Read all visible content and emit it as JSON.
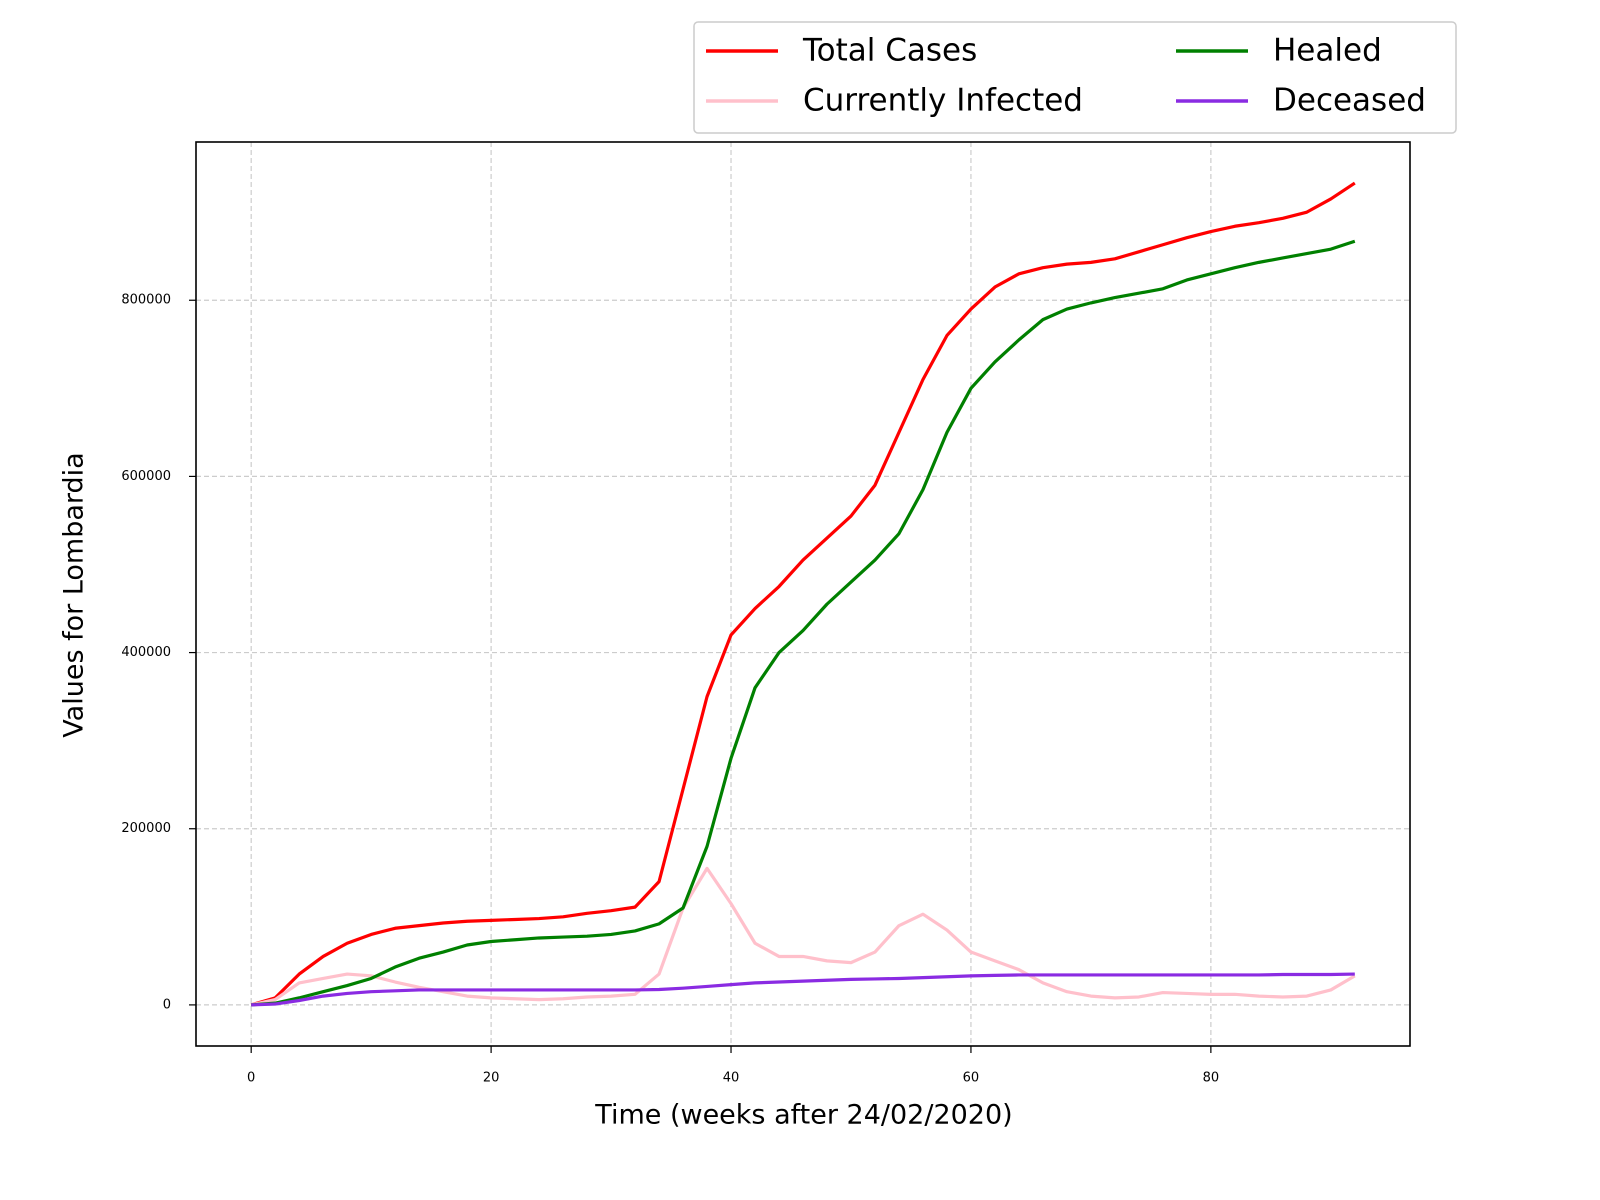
{
  "chart_data": {
    "type": "line",
    "xlabel": "Time (weeks after 24/02/2020)",
    "ylabel": "Values for Lombardia",
    "x": [
      0,
      2,
      4,
      6,
      8,
      10,
      12,
      14,
      16,
      18,
      20,
      22,
      24,
      26,
      28,
      30,
      32,
      34,
      36,
      38,
      40,
      42,
      44,
      46,
      48,
      50,
      52,
      54,
      56,
      58,
      60,
      62,
      64,
      66,
      68,
      70,
      72,
      74,
      76,
      78,
      80,
      82,
      84,
      86,
      88,
      90,
      92
    ],
    "series": [
      {
        "name": "Total Cases",
        "color": "#ff0000",
        "values": [
          0,
          8000,
          35000,
          55000,
          70000,
          80000,
          87000,
          90000,
          93000,
          95000,
          96000,
          97000,
          98000,
          100000,
          104000,
          107000,
          111000,
          140000,
          245000,
          350000,
          420000,
          450000,
          475000,
          505000,
          530000,
          555000,
          590000,
          650000,
          710000,
          760000,
          790000,
          815000,
          830000,
          837000,
          841000,
          843000,
          847000,
          855000,
          863000,
          871000,
          878000,
          884000,
          888000,
          893000,
          900000,
          915000,
          933000
        ]
      },
      {
        "name": "Currently Infected",
        "color": "#ffc0cb",
        "values": [
          0,
          6000,
          25000,
          30000,
          35000,
          33000,
          26000,
          20000,
          15000,
          10000,
          8000,
          7000,
          6000,
          7000,
          9000,
          10000,
          12000,
          35000,
          110000,
          155000,
          115000,
          70000,
          55000,
          55000,
          50000,
          48000,
          60000,
          90000,
          103000,
          85000,
          60000,
          50000,
          40000,
          25000,
          15000,
          10000,
          8000,
          9000,
          14000,
          13000,
          12000,
          12000,
          10000,
          9000,
          10000,
          17000,
          33000
        ]
      },
      {
        "name": "Healed",
        "color": "#008000",
        "values": [
          0,
          2000,
          8000,
          15000,
          22000,
          30000,
          43000,
          53000,
          60000,
          68000,
          72000,
          74000,
          76000,
          77000,
          78000,
          80000,
          84000,
          92000,
          110000,
          180000,
          280000,
          360000,
          400000,
          425000,
          455000,
          480000,
          505000,
          535000,
          585000,
          650000,
          700000,
          730000,
          755000,
          778000,
          790000,
          797000,
          803000,
          808000,
          813000,
          823000,
          830000,
          837000,
          843000,
          848000,
          853000,
          858000,
          867000
        ]
      },
      {
        "name": "Deceased",
        "color": "#8a2be2",
        "values": [
          0,
          1000,
          5000,
          10000,
          13000,
          15000,
          16000,
          17000,
          17000,
          17000,
          17000,
          17000,
          17000,
          17000,
          17000,
          17000,
          17000,
          17500,
          19000,
          21000,
          23000,
          25000,
          26000,
          27000,
          28000,
          29000,
          29500,
          30000,
          31000,
          32000,
          33000,
          33500,
          34000,
          34000,
          34000,
          34000,
          34000,
          34000,
          34000,
          34000,
          34000,
          34000,
          34000,
          34500,
          34500,
          34500,
          35000
        ]
      }
    ],
    "xlim": [
      -4.6,
      96.6
    ],
    "xticks": [
      0,
      20,
      40,
      60,
      80
    ],
    "ylim": [
      -46650,
      979650
    ],
    "yticks": [
      0,
      200000,
      400000,
      600000,
      800000
    ],
    "grid": true,
    "legend": "upper right"
  }
}
